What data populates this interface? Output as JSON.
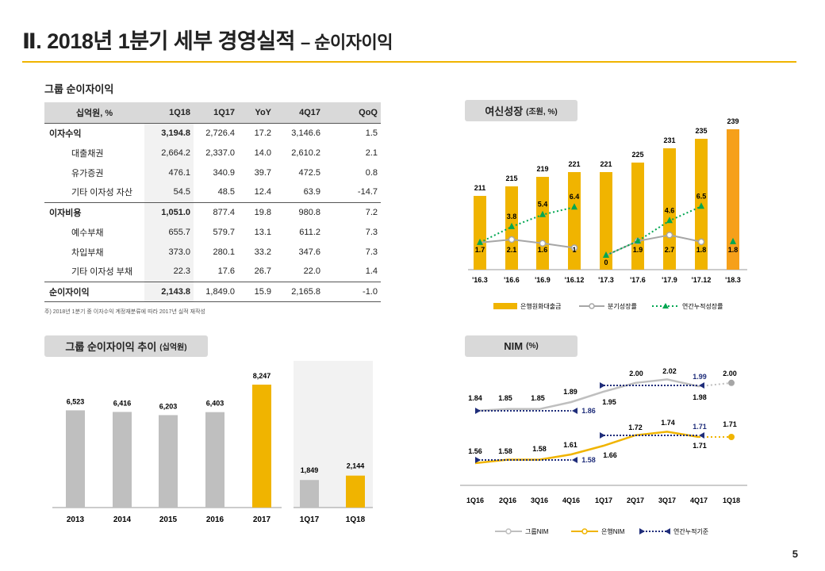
{
  "page": {
    "title": "Ⅱ. 2018년 1분기 세부 경영실적",
    "subtitle": "– 순이자이익",
    "page_number": "5",
    "colors": {
      "accent": "#f0b400",
      "gray": "#bfbfbf",
      "orange": "#f6a01a",
      "green": "#00a651",
      "navy": "#1f2d7a"
    }
  },
  "table": {
    "section_label": "그룹 순이자이익",
    "headers": [
      "십억원, %",
      "1Q18",
      "1Q17",
      "YoY",
      "4Q17",
      "QoQ"
    ],
    "rows": [
      {
        "type": "main",
        "cells": [
          "이자수익",
          "3,194.8",
          "2,726.4",
          "17.2",
          "3,146.6",
          "1.5"
        ]
      },
      {
        "type": "sub",
        "cells": [
          "대출채권",
          "2,664.2",
          "2,337.0",
          "14.0",
          "2,610.2",
          "2.1"
        ]
      },
      {
        "type": "sub",
        "cells": [
          "유가증권",
          "476.1",
          "340.9",
          "39.7",
          "472.5",
          "0.8"
        ]
      },
      {
        "type": "sub",
        "cells": [
          "기타 이자성 자산",
          "54.5",
          "48.5",
          "12.4",
          "63.9",
          "-14.7"
        ]
      },
      {
        "type": "main",
        "cells": [
          "이자비용",
          "1,051.0",
          "877.4",
          "19.8",
          "980.8",
          "7.2"
        ]
      },
      {
        "type": "sub",
        "cells": [
          "예수부채",
          "655.7",
          "579.7",
          "13.1",
          "611.2",
          "7.3"
        ]
      },
      {
        "type": "sub",
        "cells": [
          "차입부채",
          "373.0",
          "280.1",
          "33.2",
          "347.6",
          "7.3"
        ]
      },
      {
        "type": "sub",
        "cells": [
          "기타 이자성 부채",
          "22.3",
          "17.6",
          "26.7",
          "22.0",
          "1.4"
        ]
      },
      {
        "type": "main",
        "cells": [
          "순이자이익",
          "2,143.8",
          "1,849.0",
          "15.9",
          "2,165.8",
          "-1.0"
        ]
      }
    ],
    "note": "주) 2018년 1분기 중 이자수익 계정재분류에 따라 2017년 실적 재작성"
  },
  "chart_data": [
    {
      "type": "bar",
      "pill_label": "그룹 순이자이익 추이",
      "pill_unit": "(십억원)",
      "categories": [
        "2013",
        "2014",
        "2015",
        "2016",
        "2017"
      ],
      "values": [
        6523,
        6416,
        6203,
        6403,
        8247
      ],
      "value_labels": [
        "6,523",
        "6,416",
        "6,203",
        "6,403",
        "8,247"
      ],
      "quarter_categories": [
        "1Q17",
        "1Q18"
      ],
      "quarter_values": [
        1849,
        2144
      ],
      "quarter_value_labels": [
        "1,849",
        "2,144"
      ]
    },
    {
      "type": "bar",
      "pill_label": "여신성장",
      "pill_unit": "(조원, %)",
      "categories": [
        "'16.3",
        "'16.6",
        "'16.9",
        "'16.12",
        "'17.3",
        "'17.6",
        "'17.9",
        "'17.12",
        "'18.3"
      ],
      "bars": [
        211,
        215,
        219,
        221,
        221,
        225,
        231,
        235,
        239
      ],
      "quarterly_growth": [
        1.7,
        2.1,
        1.6,
        1.0,
        0.0,
        1.9,
        2.7,
        1.8,
        1.8
      ],
      "ytd_growth": [
        1.7,
        3.8,
        5.4,
        6.4,
        0.0,
        1.9,
        4.6,
        6.5,
        1.8
      ],
      "ytd_labels": [
        null,
        "3.8",
        "5.4",
        "6.4",
        null,
        null,
        "4.6",
        "6.5",
        null
      ],
      "legend": [
        "은행원화대출금",
        "분기성장률",
        "연간누적성장률"
      ]
    },
    {
      "type": "line",
      "pill_label": "NIM",
      "pill_unit": "(%)",
      "categories": [
        "1Q16",
        "2Q16",
        "3Q16",
        "4Q16",
        "1Q17",
        "2Q17",
        "3Q17",
        "4Q17",
        "1Q18"
      ],
      "series": [
        {
          "name": "그룹NIM",
          "values": [
            1.84,
            1.85,
            1.85,
            1.89,
            1.95,
            2.0,
            2.02,
            1.98,
            2.0
          ],
          "labels": [
            "1.84",
            "1.85",
            "1.85",
            "1.89",
            "1.95",
            "2.00",
            "2.02",
            "1.98",
            "2.00"
          ]
        },
        {
          "name": "은행NIM",
          "values": [
            1.56,
            1.58,
            1.58,
            1.61,
            1.66,
            1.72,
            1.74,
            1.71,
            1.71
          ],
          "labels": [
            "1.56",
            "1.58",
            "1.58",
            "1.61",
            "1.66",
            "1.72",
            "1.74",
            "1.71",
            "1.71"
          ]
        }
      ],
      "cumulative": {
        "name": "연간누적기준",
        "group_2016": "1.86",
        "bank_2016": "1.58",
        "group_2017": "1.99",
        "bank_2017": "1.71"
      }
    }
  ]
}
